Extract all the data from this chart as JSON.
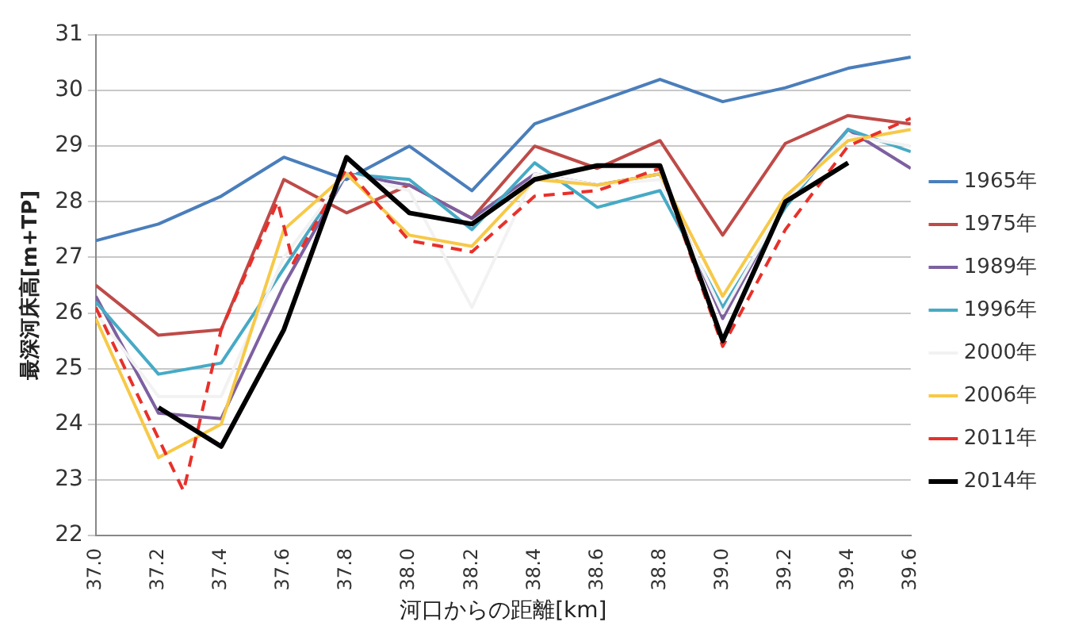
{
  "chart_data": {
    "type": "line",
    "xlabel": "河口からの距離[km]",
    "ylabel": "最深河床高[m+TP]",
    "x": [
      37.0,
      37.2,
      37.4,
      37.6,
      37.8,
      38.0,
      38.2,
      38.4,
      38.6,
      38.8,
      39.0,
      39.2,
      39.4,
      39.6
    ],
    "xlim": [
      37.0,
      39.6
    ],
    "xticks": [
      {
        "value": 37.0,
        "label": "37.0"
      },
      {
        "value": 37.2,
        "label": "37.2"
      },
      {
        "value": 37.4,
        "label": "37.4"
      },
      {
        "value": 37.6,
        "label": "37.6"
      },
      {
        "value": 37.8,
        "label": "37.8"
      },
      {
        "value": 38.0,
        "label": "38.0"
      },
      {
        "value": 38.2,
        "label": "38.2"
      },
      {
        "value": 38.4,
        "label": "38.4"
      },
      {
        "value": 38.6,
        "label": "38.6"
      },
      {
        "value": 38.8,
        "label": "38.8"
      },
      {
        "value": 39.0,
        "label": "39.0"
      },
      {
        "value": 39.2,
        "label": "39.2"
      },
      {
        "value": 39.4,
        "label": "39.4"
      },
      {
        "value": 39.6,
        "label": "39.6"
      }
    ],
    "ylim": [
      22,
      31
    ],
    "yticks": [
      22,
      23,
      24,
      25,
      26,
      27,
      28,
      29,
      30,
      31
    ],
    "grid": "y",
    "legend": "right",
    "marker": "none",
    "series": [
      {
        "name": "1965年",
        "color": "#4a7ebb",
        "values": [
          27.3,
          27.6,
          28.1,
          28.8,
          28.4,
          29.0,
          28.2,
          29.4,
          29.8,
          30.2,
          29.8,
          30.05,
          30.4,
          30.6
        ]
      },
      {
        "name": "1975年",
        "color": "#be4b48",
        "values": [
          26.5,
          25.6,
          25.7,
          28.4,
          27.8,
          28.3,
          27.7,
          29.0,
          28.6,
          29.1,
          27.4,
          29.05,
          29.55,
          29.4
        ]
      },
      {
        "name": "1989年",
        "color": "#7d60a0",
        "values": [
          26.3,
          24.2,
          24.1,
          26.5,
          28.5,
          28.3,
          27.7,
          28.5,
          28.3,
          28.5,
          25.9,
          28.0,
          29.3,
          28.6
        ]
      },
      {
        "name": "1996年",
        "color": "#46aac5",
        "values": [
          26.2,
          24.9,
          25.1,
          26.8,
          28.5,
          28.4,
          27.5,
          28.7,
          27.9,
          28.2,
          26.1,
          27.9,
          29.3,
          28.9
        ]
      },
      {
        "name": "2000年",
        "color": "#f2f2f2",
        "values": [
          26.0,
          24.5,
          24.5,
          27.0,
          28.5,
          28.2,
          26.1,
          28.5,
          28.3,
          28.4,
          26.0,
          28.0,
          29.2,
          29.0
        ]
      },
      {
        "name": "2006年",
        "color": "#f7c948",
        "values": [
          25.9,
          23.4,
          24.0,
          27.5,
          28.5,
          27.4,
          27.2,
          28.4,
          28.3,
          28.5,
          26.3,
          28.1,
          29.1,
          29.3
        ]
      },
      {
        "name": "2011年",
        "color": "#e8302a",
        "line_style": "dashed",
        "x": [
          37.0,
          37.28,
          37.4,
          37.58,
          37.63,
          37.8,
          38.0,
          38.2,
          38.4,
          38.6,
          38.8,
          39.0,
          39.2,
          39.4,
          39.6
        ],
        "values": [
          26.1,
          22.8,
          25.7,
          28.0,
          26.9,
          28.6,
          27.3,
          27.1,
          28.1,
          28.2,
          28.6,
          25.4,
          27.5,
          29.0,
          29.5
        ]
      },
      {
        "name": "2014年",
        "color": "#000000",
        "values": [
          null,
          24.3,
          23.6,
          25.7,
          28.8,
          27.8,
          27.6,
          28.4,
          28.65,
          28.65,
          25.5,
          28.0,
          28.7,
          null
        ]
      }
    ]
  }
}
